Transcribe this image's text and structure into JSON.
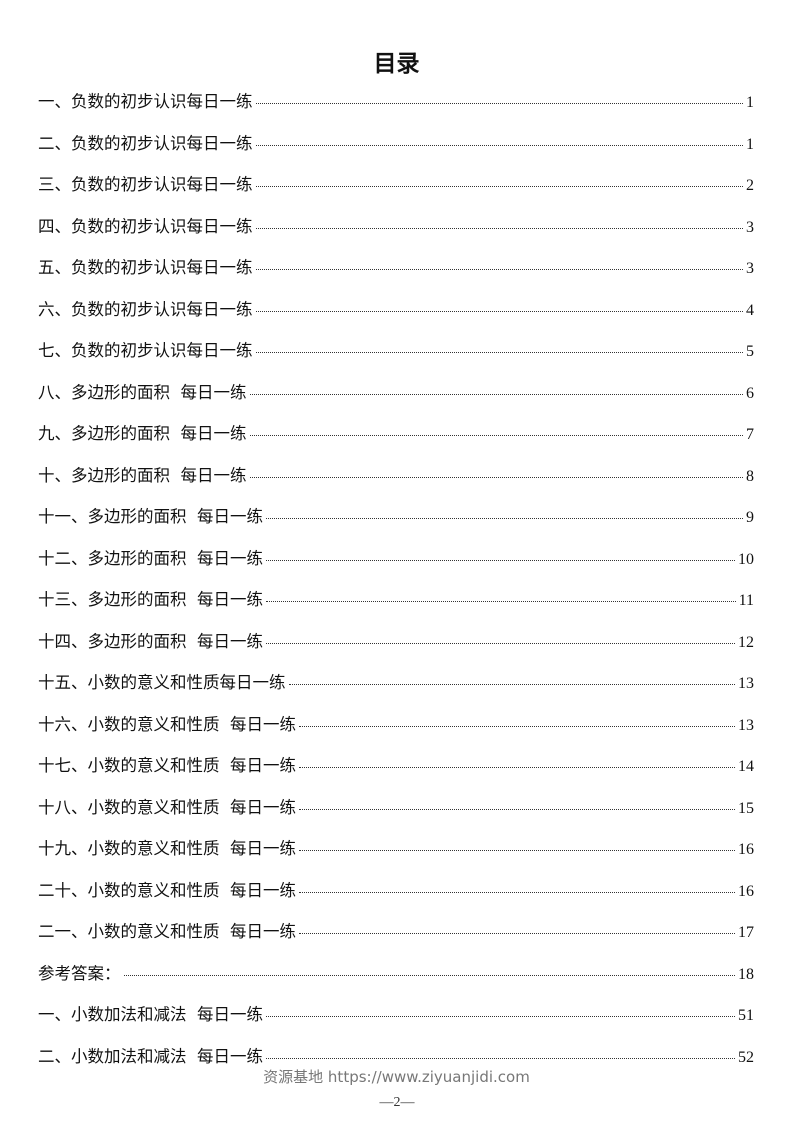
{
  "title": "目录",
  "entries": [
    {
      "label": "一、负数的初步认识每日一练",
      "page": "1"
    },
    {
      "label": "二、负数的初步认识每日一练",
      "page": "1"
    },
    {
      "label": "三、负数的初步认识每日一练",
      "page": "2"
    },
    {
      "label": "四、负数的初步认识每日一练",
      "page": "3"
    },
    {
      "label": "五、负数的初步认识每日一练",
      "page": "3"
    },
    {
      "label": "六、负数的初步认识每日一练",
      "page": "4"
    },
    {
      "label": "七、负数的初步认识每日一练",
      "page": "5"
    },
    {
      "label": "八、多边形的面积  每日一练",
      "page": "6"
    },
    {
      "label": "九、多边形的面积  每日一练",
      "page": "7"
    },
    {
      "label": "十、多边形的面积  每日一练",
      "page": "8"
    },
    {
      "label": "十一、多边形的面积  每日一练",
      "page": "9"
    },
    {
      "label": "十二、多边形的面积  每日一练",
      "page": "10"
    },
    {
      "label": "十三、多边形的面积  每日一练",
      "page": "11"
    },
    {
      "label": "十四、多边形的面积  每日一练",
      "page": "12"
    },
    {
      "label": "十五、小数的意义和性质每日一练",
      "page": "13"
    },
    {
      "label": "十六、小数的意义和性质  每日一练",
      "page": "13"
    },
    {
      "label": "十七、小数的意义和性质  每日一练",
      "page": "14"
    },
    {
      "label": "十八、小数的意义和性质  每日一练",
      "page": "15"
    },
    {
      "label": "十九、小数的意义和性质  每日一练",
      "page": "16"
    },
    {
      "label": "二十、小数的意义和性质  每日一练",
      "page": "16"
    },
    {
      "label": "二一、小数的意义和性质  每日一练",
      "page": "17"
    },
    {
      "label": "参考答案：",
      "page": "18"
    },
    {
      "label": "一、小数加法和减法  每日一练",
      "page": "51"
    },
    {
      "label": "二、小数加法和减法  每日一练",
      "page": "52"
    }
  ],
  "footer": {
    "watermark": "资源基地 https://www.ziyuanjidi.com",
    "page_number": "—2—"
  }
}
